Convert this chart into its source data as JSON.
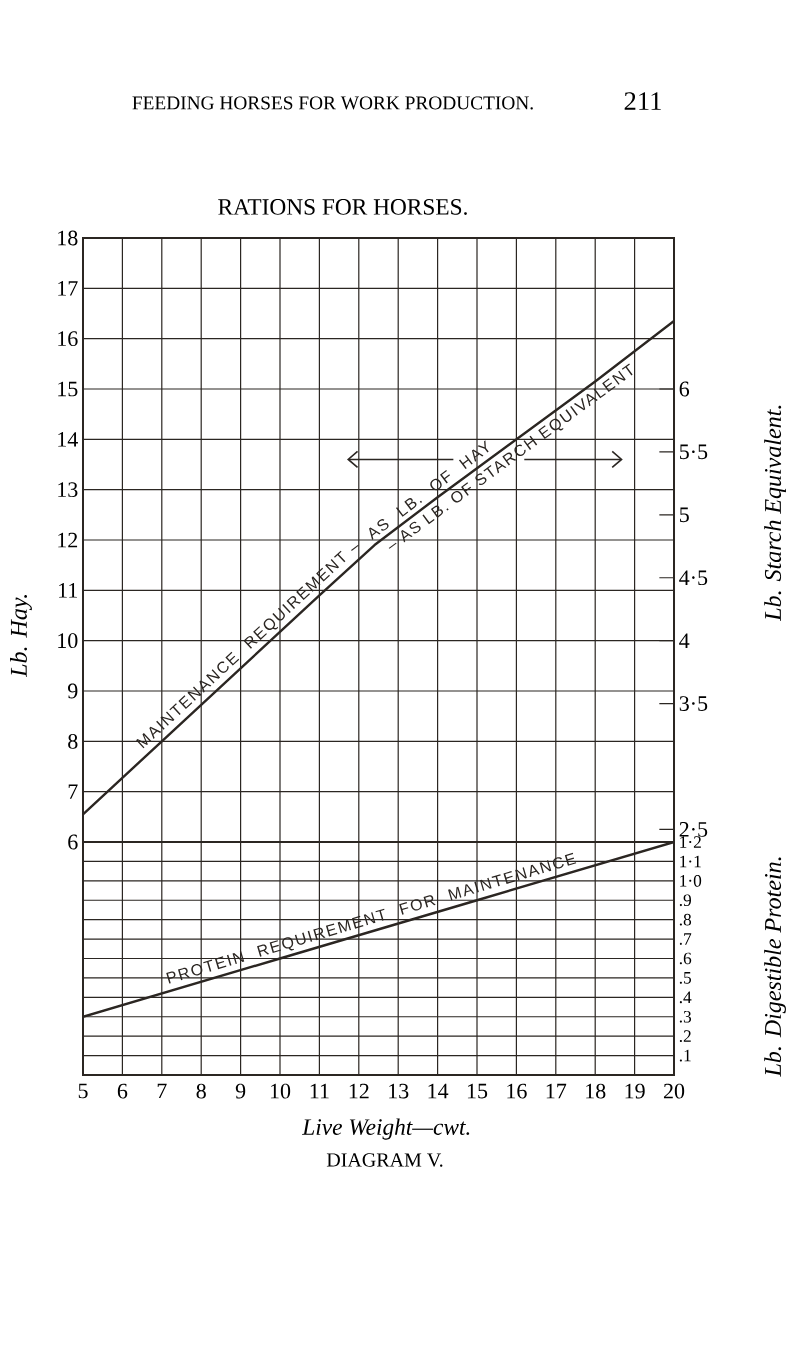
{
  "chart_data": [
    {
      "type": "line",
      "title": "RATIONS FOR HORSES.",
      "ylabel": "Lb. Hay.",
      "y2label": "Lb. Starch Equivalent.",
      "x": [
        5,
        7,
        9,
        11,
        12.4,
        14,
        16,
        18,
        20
      ],
      "series": [
        {
          "name": "MAINTENANCE REQUIREMENT",
          "color": "#2b2622",
          "values": [
            6.55,
            8.0,
            9.45,
            10.9,
            11.9,
            12.85,
            14.0,
            15.15,
            16.35
          ]
        }
      ],
      "xlim": [
        5,
        20
      ],
      "xticks": [
        5,
        6,
        7,
        8,
        9,
        10,
        11,
        12,
        13,
        14,
        15,
        16,
        17,
        18,
        19,
        20
      ],
      "ylim": [
        6,
        18
      ],
      "yticks": [
        6,
        7,
        8,
        9,
        10,
        11,
        12,
        13,
        14,
        15,
        16,
        17,
        18
      ],
      "y2lim": [
        2.4,
        7.2
      ],
      "y2ticks": [
        {
          "value": 2.5,
          "label": "2·5"
        },
        {
          "value": 3.5,
          "label": "3·5"
        },
        4,
        {
          "value": 4.5,
          "label": "4·5"
        },
        5,
        {
          "value": 5.5,
          "label": "5·5"
        },
        6
      ],
      "grid": true,
      "tick_labels": "y",
      "annotations": [
        "FEEDING HORSES FOR WORK PRODUCTION.",
        "211",
        {
          "text": "– AS LB. OF HAY",
          "x": 13.7,
          "y": 12.7
        },
        {
          "text": "– AS LB. OF STARCH EQUIVALENT",
          "x": 15.7,
          "y": 13.8
        }
      ]
    },
    {
      "type": "line",
      "xlabel": "Live Weight—cwt.",
      "ylabel": "Lb. Digestible Protein.",
      "x": [
        5,
        10,
        15,
        20
      ],
      "series": [
        {
          "name": "PROTEIN REQUIREMENT FOR MAINTENANCE",
          "color": "#2b2622",
          "values": [
            0.3,
            0.6,
            0.9,
            1.2
          ]
        }
      ],
      "xlim": [
        5,
        20
      ],
      "xticks": [
        5,
        6,
        7,
        8,
        9,
        10,
        11,
        12,
        13,
        14,
        15,
        16,
        17,
        18,
        19,
        20
      ],
      "ylim": [
        0,
        1.2
      ],
      "yticks": [
        {
          "value": 0.1,
          "label": ".1"
        },
        {
          "value": 0.2,
          "label": ".2"
        },
        {
          "value": 0.3,
          "label": ".3"
        },
        {
          "value": 0.4,
          "label": ".4"
        },
        {
          "value": 0.5,
          "label": ".5"
        },
        {
          "value": 0.6,
          "label": ".6"
        },
        {
          "value": 0.7,
          "label": ".7"
        },
        {
          "value": 0.8,
          "label": ".8"
        },
        {
          "value": 0.9,
          "label": ".9"
        },
        {
          "value": 1.0,
          "label": "1·0"
        },
        {
          "value": 1.1,
          "label": "1·1"
        },
        {
          "value": 1.2,
          "label": "1·2"
        }
      ],
      "grid": true,
      "annotations": [
        "DIAGRAM V."
      ]
    }
  ]
}
